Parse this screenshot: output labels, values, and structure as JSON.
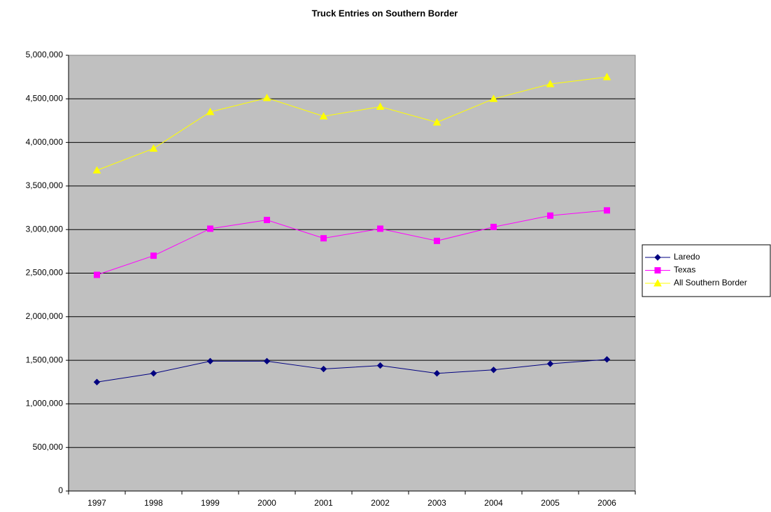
{
  "chart_data": {
    "type": "line",
    "title": "Truck Entries on Southern Border",
    "categories": [
      "1997",
      "1998",
      "1999",
      "2000",
      "2001",
      "2002",
      "2003",
      "2004",
      "2005",
      "2006"
    ],
    "series": [
      {
        "name": "Laredo",
        "color": "#000080",
        "marker": "diamond",
        "values": [
          1250000,
          1350000,
          1490000,
          1490000,
          1400000,
          1440000,
          1350000,
          1390000,
          1460000,
          1510000
        ]
      },
      {
        "name": "Texas",
        "color": "#ff00ff",
        "marker": "square",
        "values": [
          2480000,
          2700000,
          3010000,
          3110000,
          2900000,
          3010000,
          2870000,
          3030000,
          3160000,
          3220000
        ]
      },
      {
        "name": "All Southern Border",
        "color": "#ffff00",
        "marker": "triangle",
        "values": [
          3680000,
          3930000,
          4350000,
          4510000,
          4300000,
          4410000,
          4230000,
          4500000,
          4670000,
          4750000
        ]
      }
    ],
    "ylim": [
      0,
      5000000
    ],
    "yticks": [
      0,
      {
        "value": 500000,
        "label": "500,000"
      },
      {
        "value": 1000000,
        "label": "1,000,000"
      },
      {
        "value": 1500000,
        "label": "1,500,000"
      },
      {
        "value": 2000000,
        "label": "2,000,000"
      },
      {
        "value": 2500000,
        "label": "2,500,000"
      },
      {
        "value": 3000000,
        "label": "3,000,000"
      },
      {
        "value": 3500000,
        "label": "3,500,000"
      },
      {
        "value": 4000000,
        "label": "4,000,000"
      },
      {
        "value": 4500000,
        "label": "4,500,000"
      },
      {
        "value": 5000000,
        "label": "5,000,000"
      }
    ],
    "grid": true,
    "legend": "right"
  }
}
